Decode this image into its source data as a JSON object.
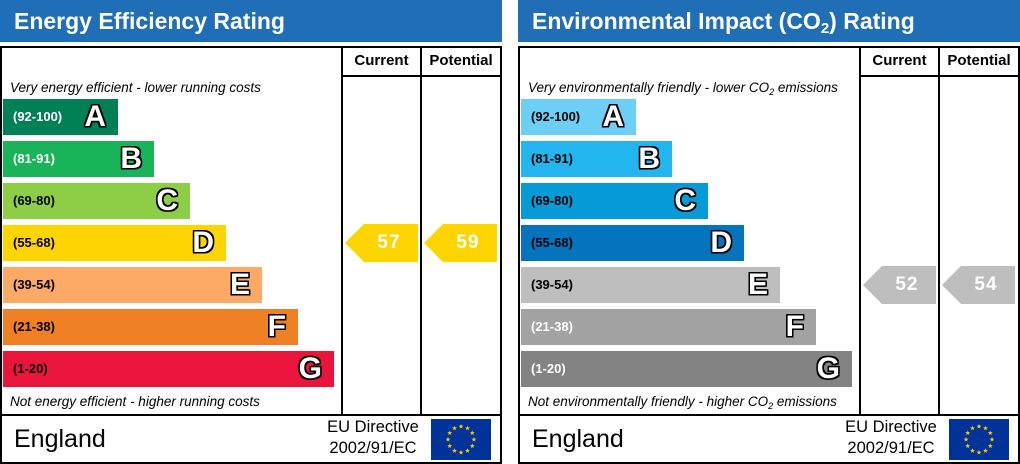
{
  "chart_data": [
    {
      "type": "bar",
      "title": "Energy Efficiency Rating",
      "columns": [
        "Current",
        "Potential"
      ],
      "top_note": "Very energy efficient - lower running costs",
      "bottom_note": "Not energy efficient - higher running costs",
      "categories": [
        "A",
        "B",
        "C",
        "D",
        "E",
        "F",
        "G"
      ],
      "bands": [
        {
          "range": "(92-100)",
          "letter": "A",
          "color": "#008054",
          "text_color": "#ffffff"
        },
        {
          "range": "(81-91)",
          "letter": "B",
          "color": "#19b459",
          "text_color": "#ffffff"
        },
        {
          "range": "(69-80)",
          "letter": "C",
          "color": "#8dce46",
          "text_color": "#000000"
        },
        {
          "range": "(55-68)",
          "letter": "D",
          "color": "#ffd500",
          "text_color": "#000000"
        },
        {
          "range": "(39-54)",
          "letter": "E",
          "color": "#fcaa65",
          "text_color": "#000000"
        },
        {
          "range": "(21-38)",
          "letter": "F",
          "color": "#ef8023",
          "text_color": "#000000"
        },
        {
          "range": "(1-20)",
          "letter": "G",
          "color": "#e9153b",
          "text_color": "#000000"
        }
      ],
      "series": [
        {
          "name": "Current",
          "value": 57,
          "band": "D",
          "color": "#ffd500"
        },
        {
          "name": "Potential",
          "value": 59,
          "band": "D",
          "color": "#ffd500"
        }
      ],
      "footer": {
        "country": "England",
        "directive_line1": "EU Directive",
        "directive_line2": "2002/91/EC"
      }
    },
    {
      "type": "bar",
      "title": "Environmental Impact (CO2) Rating",
      "title_pre": "Environmental Impact (CO",
      "title_sub": "2",
      "title_post": ") Rating",
      "columns": [
        "Current",
        "Potential"
      ],
      "top_note_pre": "Very environmentally friendly - lower CO",
      "top_note_sub": "2",
      "top_note_post": " emissions",
      "bottom_note_pre": "Not environmentally friendly - higher CO",
      "bottom_note_sub": "2",
      "bottom_note_post": " emissions",
      "categories": [
        "A",
        "B",
        "C",
        "D",
        "E",
        "F",
        "G"
      ],
      "bands": [
        {
          "range": "(92-100)",
          "letter": "A",
          "color": "#6ecff6",
          "text_color": "#000000"
        },
        {
          "range": "(81-91)",
          "letter": "B",
          "color": "#22b5ee",
          "text_color": "#000000"
        },
        {
          "range": "(69-80)",
          "letter": "C",
          "color": "#069bd6",
          "text_color": "#000000"
        },
        {
          "range": "(55-68)",
          "letter": "D",
          "color": "#0474bc",
          "text_color": "#000000"
        },
        {
          "range": "(39-54)",
          "letter": "E",
          "color": "#bebebe",
          "text_color": "#000000"
        },
        {
          "range": "(21-38)",
          "letter": "F",
          "color": "#a3a3a3",
          "text_color": "#ffffff"
        },
        {
          "range": "(1-20)",
          "letter": "G",
          "color": "#838383",
          "text_color": "#ffffff"
        }
      ],
      "series": [
        {
          "name": "Current",
          "value": 52,
          "band": "E",
          "color": "#bebebe"
        },
        {
          "name": "Potential",
          "value": 54,
          "band": "E",
          "color": "#bebebe"
        }
      ],
      "footer": {
        "country": "England",
        "directive_line1": "EU Directive",
        "directive_line2": "2002/91/EC"
      }
    }
  ],
  "icons": {
    "flag": "eu-flag-icon",
    "flag_colors": {
      "field": "#003399",
      "stars": "#ffcc00"
    }
  }
}
